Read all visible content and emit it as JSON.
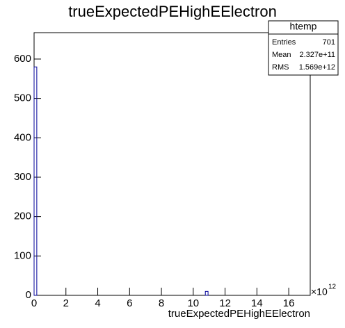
{
  "chart_data": {
    "type": "histogram",
    "title": "trueExpectedPEHighEElectron",
    "x_label": "trueExpectedPEHighEElectron",
    "x_multiplier": "×10",
    "x_multiplier_exponent": "12",
    "bins": [
      0,
      0.17,
      10.76,
      10.93,
      17.35
    ],
    "counts": [
      580,
      0,
      10,
      0
    ],
    "color": "#000099",
    "xlim": [
      0,
      17.35
    ],
    "ylim": [
      0,
      667
    ],
    "xticks": [
      0,
      2,
      4,
      6,
      8,
      10,
      12,
      14,
      16
    ],
    "yticks": [
      0,
      100,
      200,
      300,
      400,
      500,
      600
    ],
    "stats": {
      "title": "htemp",
      "rows": [
        [
          "Entries",
          "701"
        ],
        [
          "Mean",
          "2.327e+11"
        ],
        [
          "RMS",
          "1.569e+12"
        ]
      ]
    }
  }
}
